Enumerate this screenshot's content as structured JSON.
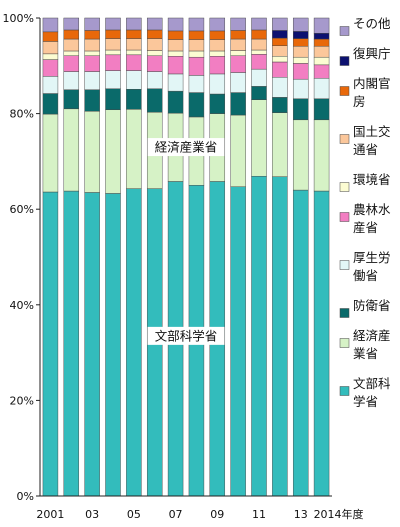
{
  "chart_data": {
    "type": "bar",
    "stacked": true,
    "percent": true,
    "x": [
      "2001",
      "2002",
      "2003",
      "2004",
      "2005",
      "2006",
      "2007",
      "2008",
      "2009",
      "2010",
      "2011",
      "2012",
      "2013",
      "2014"
    ],
    "x_tick_labels": [
      "2001",
      "",
      "03",
      "",
      "05",
      "",
      "07",
      "",
      "09",
      "",
      "11",
      "",
      "13",
      "2014年度"
    ],
    "ylim": [
      0,
      100
    ],
    "y_ticks": [
      0,
      20,
      40,
      60,
      80,
      100
    ],
    "y_tick_labels": [
      "0%",
      "20%",
      "40%",
      "60%",
      "80%",
      "100%"
    ],
    "grid": false,
    "legend_position": "right",
    "series": [
      {
        "name": "文部科学省",
        "legend_lines": [
          "文部科",
          "学省"
        ],
        "color": "#33bcbc",
        "values": [
          63.6,
          63.8,
          63.5,
          63.3,
          64.3,
          64.3,
          65.8,
          65.0,
          65.8,
          64.7,
          66.9,
          66.8,
          64.0,
          63.8
        ]
      },
      {
        "name": "経済産業省",
        "legend_lines": [
          "経済産",
          "業省"
        ],
        "color": "#d6f2c6",
        "values": [
          16.3,
          17.2,
          17.0,
          17.5,
          16.6,
          16.0,
          14.3,
          14.3,
          14.2,
          15.0,
          16.0,
          13.4,
          14.7,
          14.9
        ]
      },
      {
        "name": "防衛省",
        "legend_lines": [
          "防衛省"
        ],
        "color": "#0a6a6a",
        "values": [
          4.3,
          4.0,
          4.5,
          4.4,
          4.2,
          4.9,
          4.6,
          5.1,
          4.1,
          4.7,
          2.8,
          3.2,
          4.4,
          4.4
        ]
      },
      {
        "name": "厚生労働省",
        "legend_lines": [
          "厚生労",
          "働省"
        ],
        "color": "#e2f6f6",
        "values": [
          3.6,
          3.8,
          3.8,
          3.8,
          3.9,
          3.6,
          3.6,
          3.6,
          4.2,
          4.2,
          3.6,
          4.2,
          4.1,
          4.3
        ]
      },
      {
        "name": "農林水産省",
        "legend_lines": [
          "農林水",
          "産省"
        ],
        "color": "#f27ec2",
        "values": [
          3.5,
          3.3,
          3.3,
          3.3,
          3.3,
          3.3,
          3.7,
          3.8,
          3.7,
          3.5,
          3.1,
          3.2,
          3.3,
          2.8
        ]
      },
      {
        "name": "環境省",
        "legend_lines": [
          "環境省"
        ],
        "color": "#fcfcd2",
        "values": [
          1.2,
          1.0,
          1.0,
          1.0,
          1.0,
          1.1,
          1.1,
          1.3,
          1.1,
          1.1,
          0.9,
          1.2,
          1.3,
          1.6
        ]
      },
      {
        "name": "国土交通省",
        "legend_lines": [
          "国土交",
          "通省"
        ],
        "color": "#fbc79b",
        "values": [
          2.6,
          2.5,
          2.5,
          2.4,
          2.4,
          2.5,
          2.4,
          2.4,
          2.4,
          2.4,
          2.3,
          2.2,
          2.3,
          2.3
        ]
      },
      {
        "name": "内閣官房",
        "legend_lines": [
          "内閣官",
          "房"
        ],
        "color": "#e8680a",
        "values": [
          2.0,
          1.9,
          1.8,
          1.8,
          1.8,
          1.8,
          1.8,
          1.8,
          1.8,
          1.8,
          1.9,
          1.6,
          1.6,
          1.5
        ]
      },
      {
        "name": "復興庁",
        "legend_lines": [
          "復興庁"
        ],
        "color": "#0c1170",
        "values": [
          0,
          0,
          0,
          0,
          0,
          0,
          0,
          0,
          0,
          0,
          0,
          1.6,
          1.5,
          1.2
        ]
      },
      {
        "name": "その他",
        "legend_lines": [
          "その他"
        ],
        "color": "#a699cc",
        "values": [
          2.9,
          2.5,
          2.6,
          2.5,
          2.5,
          2.5,
          2.7,
          2.7,
          2.7,
          2.6,
          2.5,
          2.6,
          2.8,
          3.2
        ]
      }
    ],
    "annotations": [
      {
        "text": "経済産業省",
        "series": "経済産業省",
        "y": 73.0
      },
      {
        "text": "文部科学省",
        "series": "文部科学省",
        "y": 33.5
      }
    ]
  }
}
